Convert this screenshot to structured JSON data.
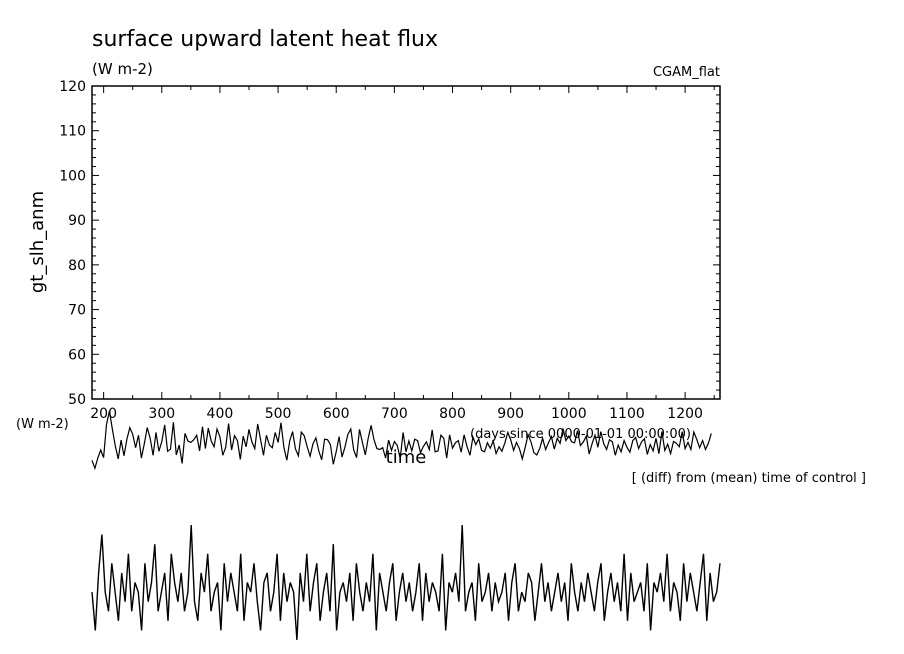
{
  "chart_data": {
    "type": "line",
    "title": "surface upward latent heat flux",
    "units": "(W m-2)",
    "run_name": "CGAM_flat",
    "ylabel": "gt_slh_anm",
    "ylabel_units": "(W m-2)",
    "xlabel": "time",
    "xlabel_units": "(days since 0000-01-01 00:00:00)",
    "note": "[ (diff) from (mean) time of control ]",
    "xlim": [
      180,
      1260
    ],
    "ylim": [
      50,
      120
    ],
    "x_ticks": [
      200,
      300,
      400,
      500,
      600,
      700,
      800,
      900,
      1000,
      1100,
      1200
    ],
    "y_ticks": [
      50,
      60,
      70,
      80,
      90,
      100,
      110,
      120
    ],
    "grid": false,
    "series": [
      {
        "x_start": 180,
        "x_step": 5,
        "values": [
          36.3,
          34.5,
          36.8,
          38.6,
          36.9,
          44.3,
          47.3,
          43.2,
          39.5,
          36.6,
          40.8,
          37.3,
          41.0,
          43.6,
          42.1,
          39.1,
          41.9,
          36.8,
          40.0,
          43.6,
          41.3,
          37.4,
          42.5,
          38.3,
          40.5,
          44.2,
          38.3,
          38.8,
          44.8,
          37.5,
          39.7,
          35.6,
          42.3,
          40.6,
          40.3,
          40.9,
          41.9,
          38.4,
          43.8,
          38.9,
          43.5,
          40.6,
          39.3,
          43.3,
          41.6,
          37.4,
          39.2,
          44.5,
          38.6,
          41.8,
          40.7,
          36.5,
          41.7,
          39.3,
          43.2,
          40.4,
          38.9,
          44.4,
          40.9,
          37.4,
          41.9,
          39.7,
          39.1,
          42.5,
          40.3,
          44.7,
          39.2,
          36.3,
          40.6,
          42.7,
          38.8,
          37.3,
          42.6,
          41.8,
          39.4,
          37.2,
          40.0,
          41.3,
          38.4,
          36.4,
          41.0,
          40.9,
          39.8,
          35.4,
          38.2,
          41.6,
          37.0,
          39.2,
          42.1,
          43.3,
          38.6,
          36.9,
          43.2,
          40.3,
          37.5,
          41.2,
          44.1,
          40.9,
          38.9,
          38.7,
          39.1,
          36.8,
          40.8,
          38.5,
          40.5,
          39.6,
          36.7,
          42.5,
          38.2,
          40.6,
          38.4,
          41.0,
          40.7,
          38.0,
          39.4,
          40.4,
          38.7,
          43.1,
          38.2,
          38.4,
          41.9,
          41.2,
          36.8,
          42.0,
          39.0,
          40.2,
          40.7,
          38.1,
          42.0,
          39.3,
          37.4,
          41.5,
          39.8,
          41.1,
          38.5,
          38.2,
          40.2,
          39.0,
          40.6,
          37.8,
          39.3,
          38.3,
          40.2,
          42.5,
          40.9,
          38.5,
          40.3,
          38.9,
          36.6,
          39.2,
          42.0,
          40.4,
          38.0,
          37.5,
          38.9,
          41.2,
          38.7,
          40.2,
          41.6,
          38.8,
          41.2,
          40.1,
          43.4,
          40.7,
          41.7,
          40.4,
          40.2,
          42.9,
          39.6,
          40.4,
          41.7,
          37.7,
          40.0,
          41.9,
          39.2,
          42.7,
          40.0,
          38.7,
          40.9,
          40.4,
          37.4,
          39.7,
          38.2,
          40.7,
          39.2,
          38.1,
          40.7,
          41.4,
          38.9,
          40.4,
          41.1,
          37.6,
          39.8,
          38.4,
          41.2,
          37.8,
          42.7,
          38.5,
          39.9,
          37.8,
          40.5,
          40.1,
          39.3,
          42.7,
          38.9,
          40.3,
          38.7,
          42.6,
          41.0,
          39.1,
          40.7,
          38.7,
          40.1,
          42.3
        ]
      }
    ],
    "inset_series": {
      "values": [
        40,
        36,
        42,
        46,
        40,
        38,
        43,
        40,
        37,
        42,
        39,
        44,
        38,
        41,
        40,
        36,
        43,
        39,
        41,
        45,
        38,
        40,
        42,
        37,
        44,
        41,
        39,
        42,
        38,
        40,
        47,
        39,
        37,
        42,
        40,
        44,
        38,
        40,
        41,
        36,
        43,
        39,
        42,
        40,
        38,
        44,
        37,
        41,
        40,
        43,
        39,
        36,
        41,
        42,
        38,
        40,
        44,
        37,
        42,
        39,
        41,
        40,
        35,
        42,
        39,
        44,
        38,
        41,
        43,
        37,
        40,
        42,
        38,
        45,
        36,
        40,
        41,
        39,
        42,
        37,
        43,
        40,
        38,
        41,
        39,
        44,
        36,
        42,
        40,
        38,
        41,
        43,
        37,
        40,
        42,
        39,
        41,
        38,
        40,
        43,
        37,
        42,
        39,
        41,
        40,
        38,
        44,
        36,
        41,
        40,
        42,
        39,
        47,
        38,
        40,
        41,
        37,
        43,
        39,
        40,
        42,
        38,
        41,
        39,
        40,
        42,
        37,
        41,
        43,
        38,
        40,
        39,
        42,
        41,
        37,
        40,
        43,
        39,
        41,
        38,
        40,
        42,
        39,
        41,
        37,
        43,
        40,
        38,
        41,
        39,
        42,
        40,
        38,
        41,
        43,
        37,
        40,
        42,
        39,
        41,
        38,
        44,
        37,
        42,
        39,
        40,
        41,
        38,
        43,
        36,
        41,
        40,
        42,
        39,
        44,
        38,
        41,
        40,
        37,
        43,
        39,
        42,
        40,
        38,
        41,
        44,
        37,
        42,
        39,
        40,
        43
      ]
    }
  },
  "colors": {
    "line": "#000000",
    "axes": "#000000",
    "background": "#ffffff"
  }
}
